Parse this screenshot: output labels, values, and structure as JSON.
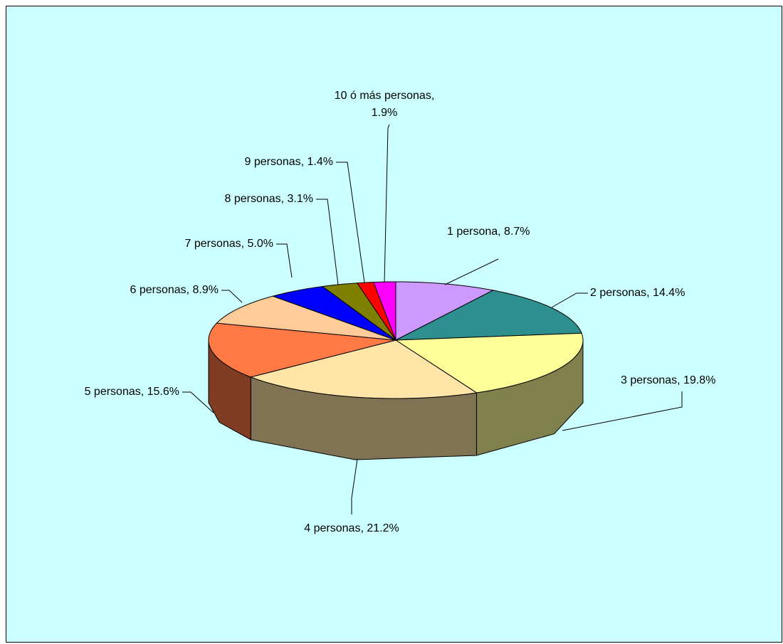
{
  "chart_data": {
    "type": "pie3d",
    "values": [
      8.7,
      14.4,
      19.8,
      21.2,
      15.6,
      8.9,
      5.0,
      3.1,
      1.4,
      1.9
    ],
    "value_labels": [
      "1 persona, 8.7%",
      "2 personas, 14.4%",
      "3 personas, 19.8%",
      "4 personas, 21.2%",
      "5 personas, 15.6%",
      "6 personas, 8.9%",
      "7 personas, 5.0%",
      "8 personas, 3.1%",
      "9 personas, 1.4%",
      "10 ó más personas, 1.9%"
    ],
    "colors": [
      "#cc99ff",
      "#2e8f8f",
      "#ffff99",
      "#ffe6a8",
      "#ff7a45",
      "#ffcc99",
      "#0000ff",
      "#808000",
      "#ff0000",
      "#ff00ff"
    ]
  }
}
